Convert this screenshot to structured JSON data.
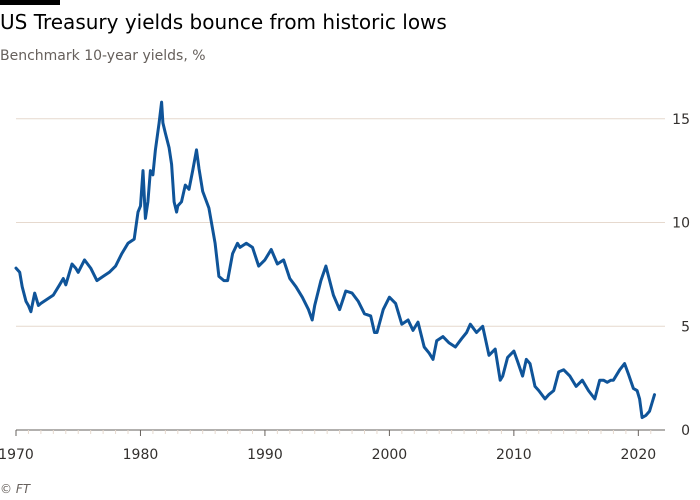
{
  "header": {
    "title": "US Treasury yields bounce from historic lows",
    "subtitle": "Benchmark 10-year yields, %"
  },
  "footer": {
    "source": "© FT"
  },
  "colors": {
    "line": "#0f5499",
    "grid": "#e6d9ce",
    "axis": "#66605c",
    "text": "#33302e"
  },
  "chart_data": {
    "type": "line",
    "title": "US Treasury yields bounce from historic lows",
    "subtitle": "Benchmark 10-year yields, %",
    "xlabel": "",
    "ylabel": "",
    "xlim": [
      1970,
      2021.5
    ],
    "ylim": [
      0,
      16
    ],
    "grid": true,
    "y_axis_side": "right",
    "x_ticks": [
      1970,
      1980,
      1990,
      2000,
      2010,
      2020
    ],
    "y_ticks": [
      0,
      5,
      10,
      15
    ],
    "series": [
      {
        "x": [
          1970.0,
          1970.3,
          1970.5,
          1970.8,
          1971.0,
          1971.2,
          1971.5,
          1971.8,
          1972.0,
          1972.5,
          1973.0,
          1973.5,
          1973.8,
          1974.0,
          1974.5,
          1974.8,
          1975.0,
          1975.5,
          1976.0,
          1976.5,
          1977.0,
          1977.5,
          1978.0,
          1978.5,
          1979.0,
          1979.5,
          1979.8,
          1980.0,
          1980.2,
          1980.4,
          1980.6,
          1980.8,
          1981.0,
          1981.2,
          1981.5,
          1981.7,
          1981.8,
          1982.0,
          1982.3,
          1982.5,
          1982.7,
          1982.9,
          1983.0,
          1983.3,
          1983.6,
          1983.9,
          1984.2,
          1984.5,
          1984.7,
          1985.0,
          1985.5,
          1986.0,
          1986.3,
          1986.7,
          1987.0,
          1987.4,
          1987.8,
          1988.0,
          1988.5,
          1989.0,
          1989.5,
          1990.0,
          1990.5,
          1991.0,
          1991.5,
          1992.0,
          1992.5,
          1993.0,
          1993.5,
          1993.8,
          1994.0,
          1994.5,
          1994.9,
          1995.5,
          1996.0,
          1996.5,
          1997.0,
          1997.5,
          1998.0,
          1998.5,
          1998.8,
          1999.0,
          1999.5,
          2000.0,
          2000.5,
          2001.0,
          2001.5,
          2001.9,
          2002.3,
          2002.8,
          2003.2,
          2003.5,
          2003.8,
          2004.3,
          2004.8,
          2005.3,
          2005.8,
          2006.2,
          2006.5,
          2007.0,
          2007.5,
          2008.0,
          2008.5,
          2008.9,
          2009.1,
          2009.5,
          2010.0,
          2010.3,
          2010.7,
          2011.0,
          2011.3,
          2011.7,
          2012.0,
          2012.5,
          2012.8,
          2013.2,
          2013.6,
          2014.0,
          2014.5,
          2015.0,
          2015.5,
          2016.0,
          2016.5,
          2016.9,
          2017.2,
          2017.5,
          2017.8,
          2018.0,
          2018.5,
          2018.9,
          2019.2,
          2019.6,
          2019.9,
          2020.1,
          2020.3,
          2020.6,
          2020.9,
          2021.1,
          2021.3
        ],
        "values": [
          7.8,
          7.6,
          6.9,
          6.2,
          6.0,
          5.7,
          6.6,
          6.0,
          6.1,
          6.3,
          6.5,
          7.0,
          7.3,
          7.0,
          8.0,
          7.8,
          7.6,
          8.2,
          7.8,
          7.2,
          7.4,
          7.6,
          7.9,
          8.5,
          9.0,
          9.2,
          10.5,
          10.8,
          12.5,
          10.2,
          11.0,
          12.5,
          12.3,
          13.5,
          14.8,
          15.8,
          14.8,
          14.3,
          13.6,
          12.8,
          11.0,
          10.5,
          10.8,
          11.0,
          11.8,
          11.6,
          12.5,
          13.5,
          12.6,
          11.5,
          10.7,
          9.0,
          7.4,
          7.2,
          7.2,
          8.5,
          9.0,
          8.8,
          9.0,
          8.8,
          7.9,
          8.2,
          8.7,
          8.0,
          8.2,
          7.3,
          6.9,
          6.4,
          5.8,
          5.3,
          6.0,
          7.2,
          7.9,
          6.5,
          5.8,
          6.7,
          6.6,
          6.2,
          5.6,
          5.5,
          4.7,
          4.7,
          5.8,
          6.4,
          6.1,
          5.1,
          5.3,
          4.8,
          5.2,
          4.0,
          3.7,
          3.4,
          4.3,
          4.5,
          4.2,
          4.0,
          4.4,
          4.7,
          5.1,
          4.7,
          5.0,
          3.6,
          3.9,
          2.4,
          2.6,
          3.5,
          3.8,
          3.3,
          2.6,
          3.4,
          3.2,
          2.1,
          1.9,
          1.5,
          1.7,
          1.9,
          2.8,
          2.9,
          2.6,
          2.1,
          2.4,
          1.9,
          1.5,
          2.4,
          2.4,
          2.3,
          2.4,
          2.4,
          2.9,
          3.2,
          2.7,
          2.0,
          1.9,
          1.5,
          0.6,
          0.7,
          0.9,
          1.3,
          1.7
        ]
      }
    ]
  }
}
